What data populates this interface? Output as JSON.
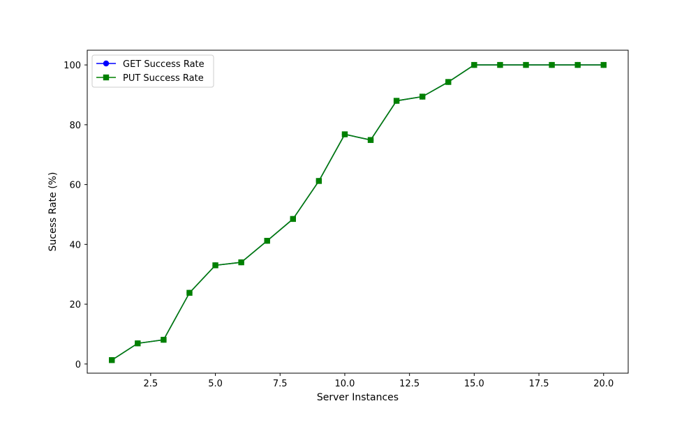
{
  "chart_data": {
    "type": "line",
    "title": "",
    "xlabel": "Server Instances",
    "ylabel": "Sucess Rate (%)",
    "xlim": [
      0.05,
      20.95
    ],
    "ylim": [
      -3.07,
      104.92
    ],
    "xticks": [
      2.5,
      5.0,
      7.5,
      10.0,
      12.5,
      15.0,
      17.5,
      20.0
    ],
    "xtick_labels": [
      "2.5",
      "5.0",
      "7.5",
      "10.0",
      "12.5",
      "15.0",
      "17.5",
      "20.0"
    ],
    "yticks": [
      0,
      20,
      40,
      60,
      80,
      100
    ],
    "ytick_labels": [
      "0",
      "20",
      "40",
      "60",
      "80",
      "100"
    ],
    "grid": false,
    "legend_position": "upper-left",
    "x": [
      1,
      2,
      3,
      4,
      5,
      6,
      7,
      8,
      9,
      10,
      11,
      12,
      13,
      14,
      15,
      16,
      17,
      18,
      19,
      20
    ],
    "series": [
      {
        "name": "GET Success Rate",
        "color": "#0000ff",
        "marker": "circle",
        "values": [
          1.3,
          6.9,
          8.1,
          23.8,
          33.0,
          34.0,
          41.2,
          48.5,
          61.2,
          76.8,
          74.9,
          88.0,
          89.4,
          94.3,
          100,
          100,
          100,
          100,
          100,
          100
        ]
      },
      {
        "name": "PUT Success Rate",
        "color": "#008000",
        "marker": "square",
        "values": [
          1.3,
          6.9,
          8.1,
          23.8,
          33.0,
          34.0,
          41.2,
          48.5,
          61.2,
          76.8,
          74.9,
          88.0,
          89.4,
          94.3,
          100,
          100,
          100,
          100,
          100,
          100
        ]
      }
    ]
  }
}
